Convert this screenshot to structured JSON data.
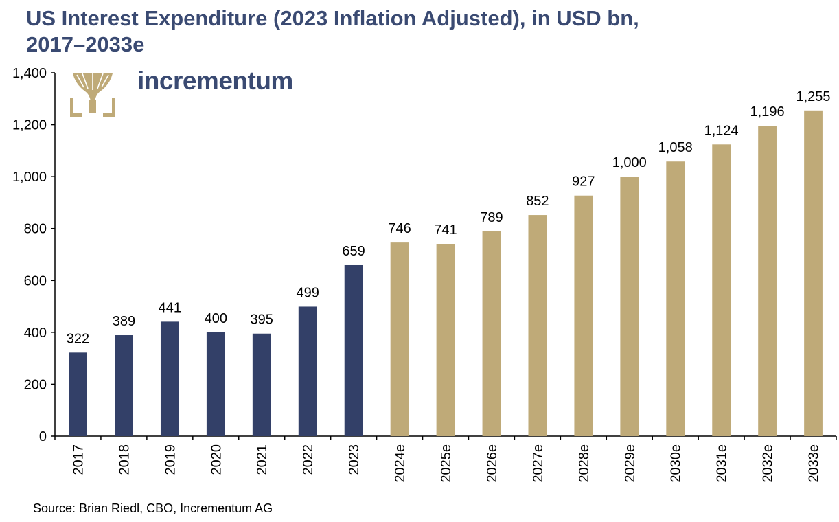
{
  "chart_data": {
    "type": "bar",
    "title_line1": "US Interest Expenditure (2023 Inflation Adjusted), in USD bn,",
    "title_line2": "2017–2033e",
    "categories": [
      "2017",
      "2018",
      "2019",
      "2020",
      "2021",
      "2022",
      "2023",
      "2024e",
      "2025e",
      "2026e",
      "2027e",
      "2028e",
      "2029e",
      "2030e",
      "2031e",
      "2032e",
      "2033e"
    ],
    "values": [
      322,
      389,
      441,
      400,
      395,
      499,
      659,
      746,
      741,
      789,
      852,
      927,
      1000,
      1058,
      1124,
      1196,
      1255
    ],
    "value_labels": [
      "322",
      "389",
      "441",
      "400",
      "395",
      "499",
      "659",
      "746",
      "741",
      "789",
      "852",
      "927",
      "1,000",
      "1,058",
      "1,124",
      "1,196",
      "1,255"
    ],
    "historical_count": 7,
    "ylim": [
      0,
      1400
    ],
    "yticks": [
      0,
      200,
      400,
      600,
      800,
      1000,
      1200,
      1400
    ],
    "ytick_labels": [
      "0",
      "200",
      "400",
      "600",
      "800",
      "1,000",
      "1,200",
      "1,400"
    ],
    "xlabel": "",
    "ylabel": "",
    "grid": false,
    "colors": {
      "historical": "#334068",
      "estimate": "#bfaa78",
      "title": "#3a4a72"
    }
  },
  "logo": {
    "text": "incrementum",
    "color_tree": "#bfaa78"
  },
  "source": "Source: Brian Riedl, CBO, Incrementum AG"
}
